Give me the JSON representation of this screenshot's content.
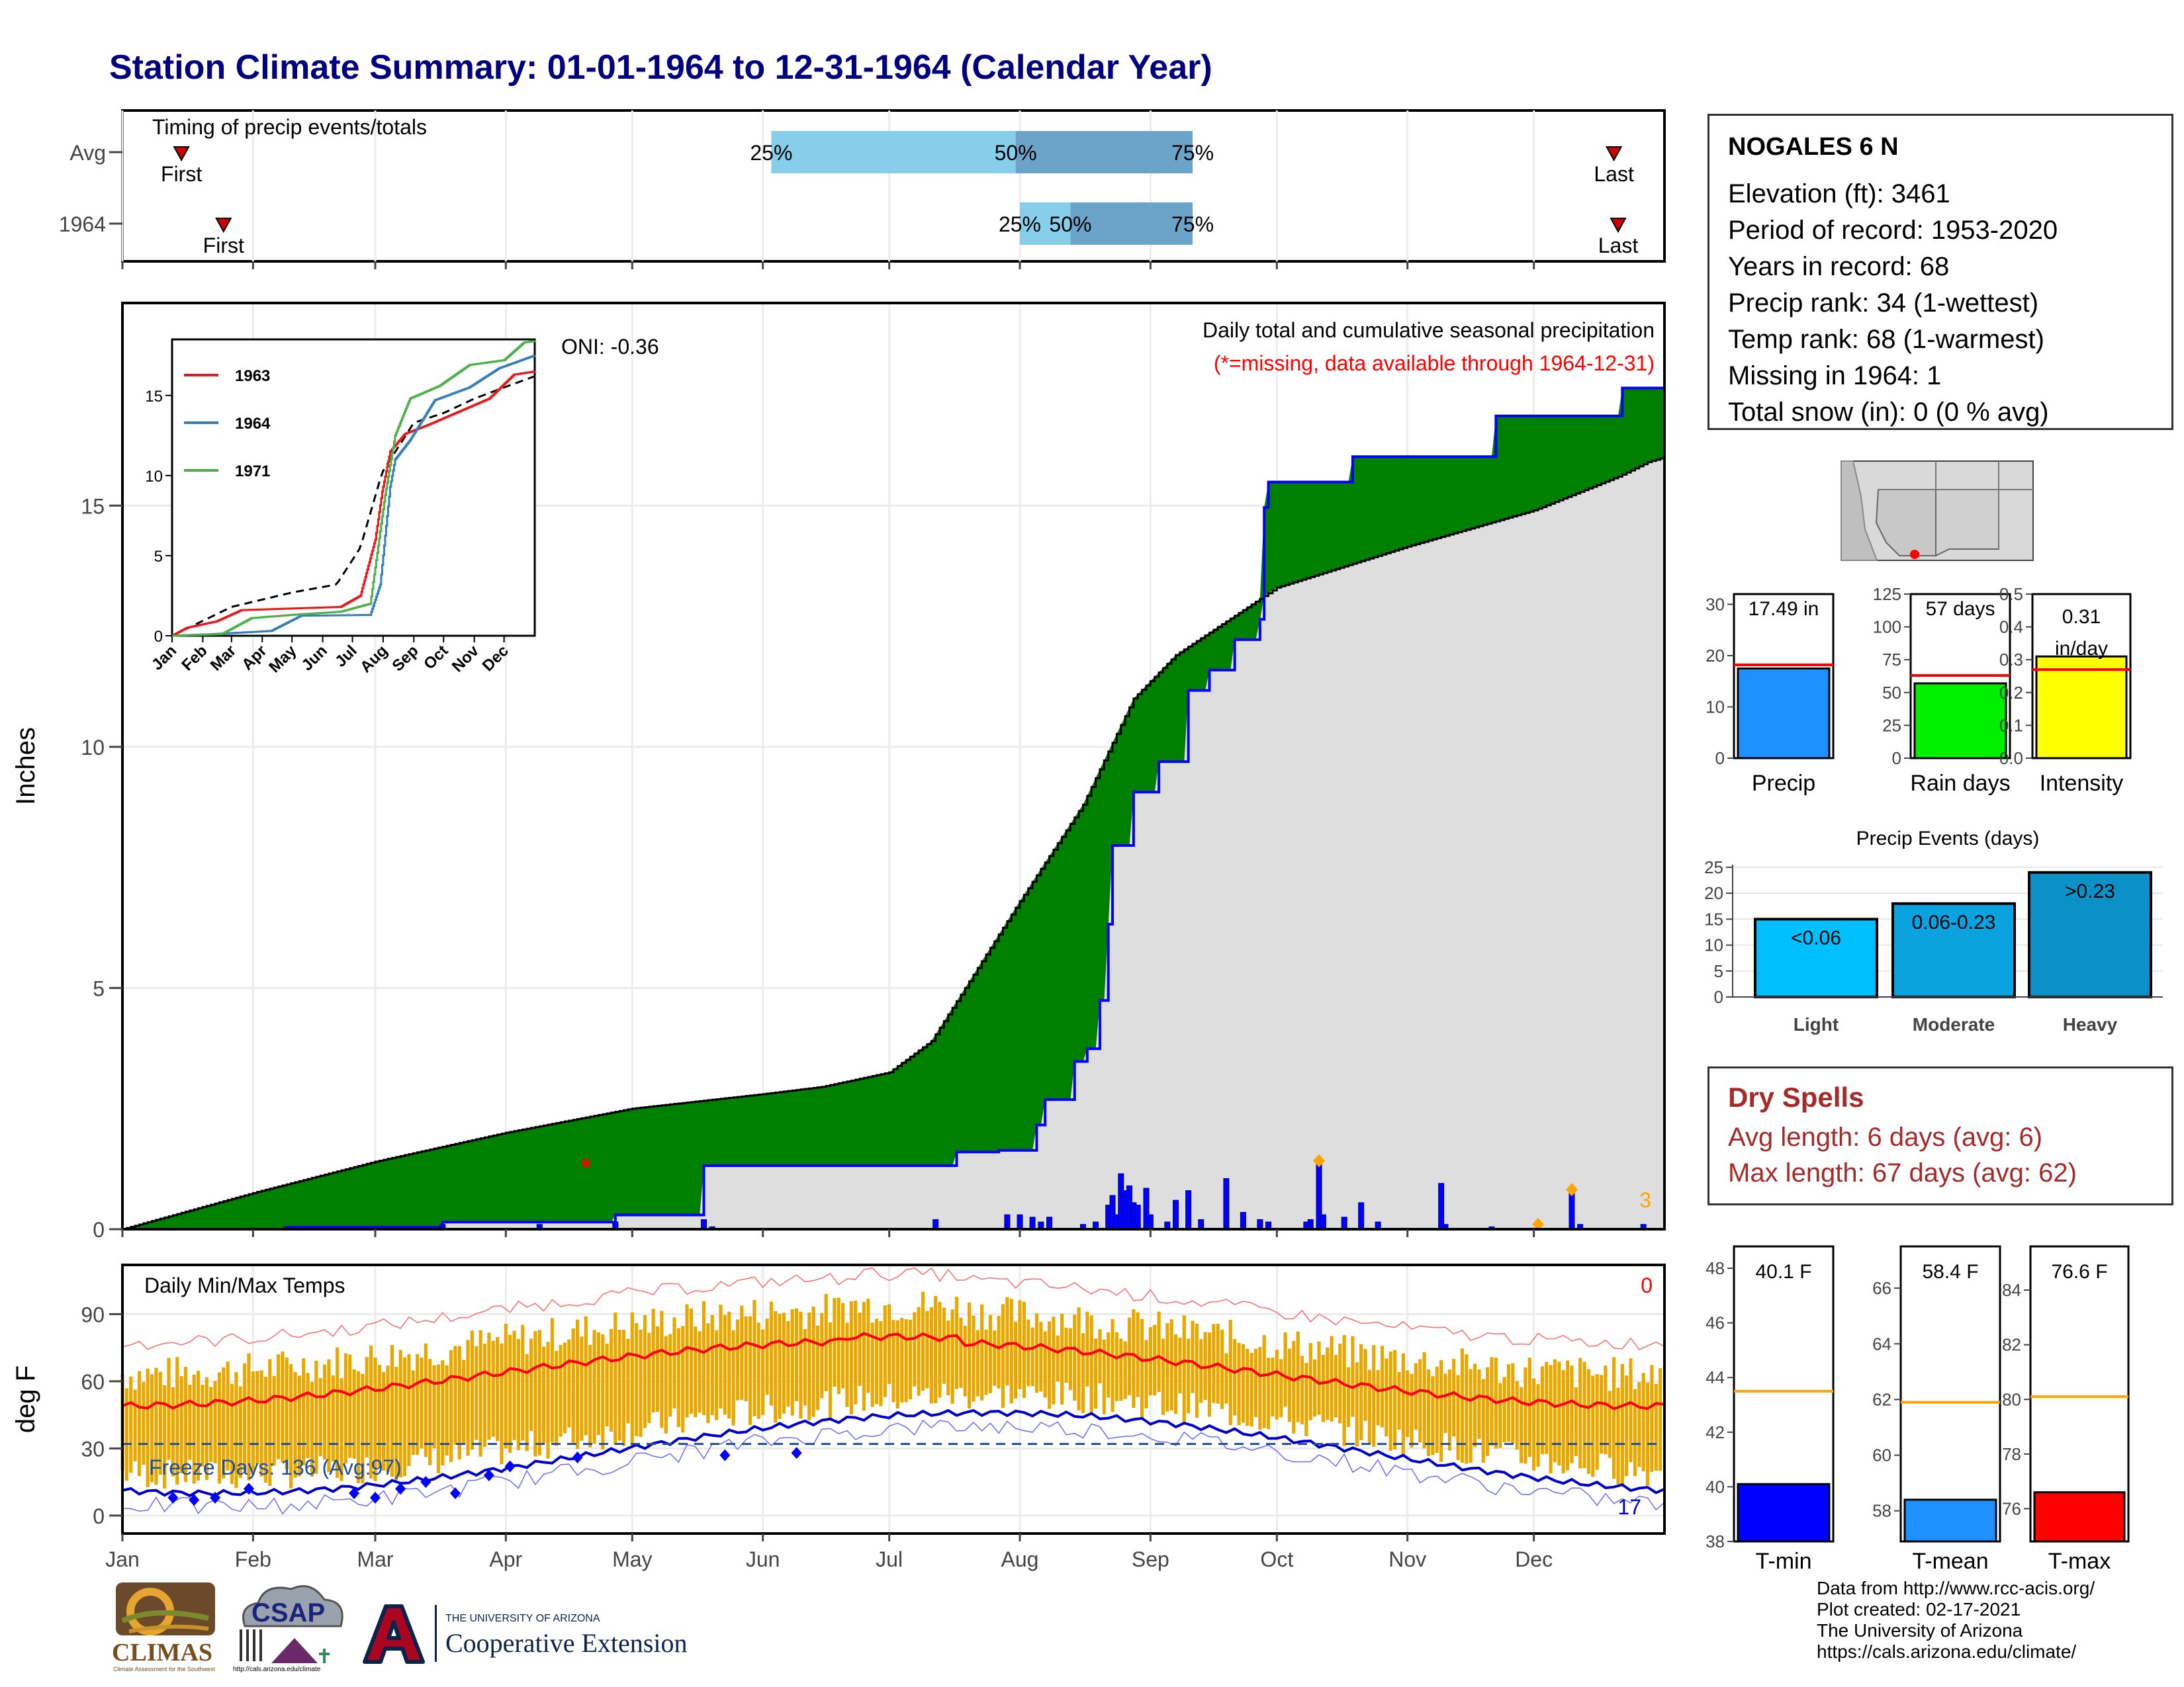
{
  "title": "Station Climate Summary: 01-01-1964 to 12-31-1964 (Calendar Year)",
  "station": {
    "name": "NOGALES 6 N",
    "lines": [
      "Elevation (ft): 3461",
      "Period of record: 1953-2020",
      "Years in record: 68",
      "Precip rank: 34 (1-wettest)",
      "Temp rank: 68 (1-warmest)",
      "Missing in 1964: 1",
      "Total snow (in): 0 (0 % avg)"
    ]
  },
  "timing_panel": {
    "title": "Timing of precip events/totals",
    "rows": [
      {
        "label": "Avg",
        "first_label": "First",
        "last_label": "Last",
        "first_doy": 14,
        "last_doy": 354,
        "p25": 154,
        "p50": 212,
        "p75": 254,
        "p25_label": "25%",
        "p50_label": "50%",
        "p75_label": "75%"
      },
      {
        "label": "1964",
        "first_label": "First",
        "last_label": "Last",
        "first_doy": 24,
        "last_doy": 355,
        "p25": 213,
        "p50": 225,
        "p75": 254,
        "p25_label": "25%",
        "p50_label": "50%",
        "p75_label": "75%"
      }
    ],
    "colors": {
      "light": "#87ceeb",
      "dark": "#6ba3c9",
      "marker": "#cc0000"
    }
  },
  "main_panel": {
    "ylabel": "Inches",
    "yticks": [
      0,
      5,
      10,
      15
    ],
    "ylim": [
      0,
      19.2
    ],
    "annotation_title": "Daily total and cumulative seasonal precipitation",
    "annotation_missing": "(*=missing, data available through 1964-12-31)",
    "oni": "ONI: -0.36",
    "snow_label": "3",
    "colors": {
      "below": "#8b5a00",
      "above": "#008000",
      "avg_area": "#dedede",
      "line": "#0000ff"
    }
  },
  "inset": {
    "yticks": [
      0,
      5,
      10,
      15
    ],
    "months": [
      "Jan",
      "Feb",
      "Mar",
      "Apr",
      "May",
      "Jun",
      "Jul",
      "Aug",
      "Sep",
      "Oct",
      "Nov",
      "Dec"
    ],
    "legend": [
      {
        "name": "1963",
        "color": "#e41a1c"
      },
      {
        "name": "1964",
        "color": "#377eb8"
      },
      {
        "name": "1971",
        "color": "#4daf4a"
      }
    ]
  },
  "temp_panel": {
    "ylabel": "deg F",
    "title": "Daily Min/Max Temps",
    "yticks": [
      0,
      30,
      60,
      90
    ],
    "ylim": [
      -8,
      112
    ],
    "freeze_label": "Freeze Days: 136 (Avg:97)",
    "hot_count": "0",
    "cold_count": "17",
    "colors": {
      "bars": "#e8a800",
      "max": "#ff0000",
      "min": "#0000cd",
      "freeze_line": "#1f4e9e"
    }
  },
  "months": [
    "Jan",
    "Feb",
    "Mar",
    "Apr",
    "May",
    "Jun",
    "Jul",
    "Aug",
    "Sep",
    "Oct",
    "Nov",
    "Dec"
  ],
  "small_bars": [
    {
      "label": "Precip",
      "value_label": "17.49 in",
      "value": 17.49,
      "avg": 18.2,
      "yticks": [
        0,
        10,
        20,
        30
      ],
      "ymax": 32,
      "color": "#1e90ff"
    },
    {
      "label": "Rain days",
      "value_label": "57 days",
      "value": 57,
      "avg": 63,
      "yticks": [
        0,
        25,
        50,
        75,
        100,
        125
      ],
      "ymax": 125,
      "color": "#00ee00"
    },
    {
      "label": "Intensity",
      "value_label": "0.31 in/day",
      "value": 0.31,
      "avg": 0.27,
      "yticks": [
        "0.0",
        "0.1",
        "0.2",
        "0.3",
        "0.4",
        "0.5"
      ],
      "ymax": 0.5,
      "color": "#ffff00"
    }
  ],
  "precip_events": {
    "title": "Precip Events (days)",
    "yticks": [
      0,
      5,
      10,
      15,
      20,
      25
    ],
    "categories": [
      "Light",
      "Moderate",
      "Heavy"
    ],
    "bar_labels": [
      "<0.06",
      "0.06-0.23",
      ">0.23"
    ],
    "values": [
      15,
      18,
      24
    ],
    "colors": [
      "#00bfff",
      "#0aa3e0",
      "#0a91c8"
    ]
  },
  "dry_spells": {
    "title": "Dry Spells",
    "avg_length": "Avg length: 6 days (avg: 6)",
    "max_length": "Max length: 67 days (avg: 62)"
  },
  "temp_bars": [
    {
      "label": "T-min",
      "value_label": "40.1 F",
      "value": 40.1,
      "avg": 43.5,
      "yticks": [
        38,
        40,
        42,
        44,
        46,
        48
      ],
      "ylim": [
        38,
        48.8
      ],
      "color": "#0000ff"
    },
    {
      "label": "T-mean",
      "value_label": "58.4 F",
      "value": 58.4,
      "avg": 61.9,
      "yticks": [
        58,
        60,
        62,
        64,
        66
      ],
      "ylim": [
        56.9,
        67.5
      ],
      "color": "#1e90ff"
    },
    {
      "label": "T-max",
      "value_label": "76.6 F",
      "value": 76.6,
      "avg": 80.1,
      "yticks": [
        76,
        78,
        80,
        82,
        84
      ],
      "ylim": [
        74.8,
        85.6
      ],
      "color": "#ff0000"
    }
  ],
  "credits": [
    "Data from http://www.rcc-acis.org/",
    "Plot created: 02-17-2021",
    "The University of Arizona",
    "https://cals.arizona.edu/climate/"
  ],
  "logos": {
    "climas": "CLIMAS",
    "climas_sub": "Climate Assessment for the Southwest",
    "csap": "CSAP",
    "csap_url": "http://cals.arizona.edu/climate",
    "ua_small": "THE UNIVERSITY OF ARIZONA",
    "ua_big": "Cooperative Extension"
  }
}
